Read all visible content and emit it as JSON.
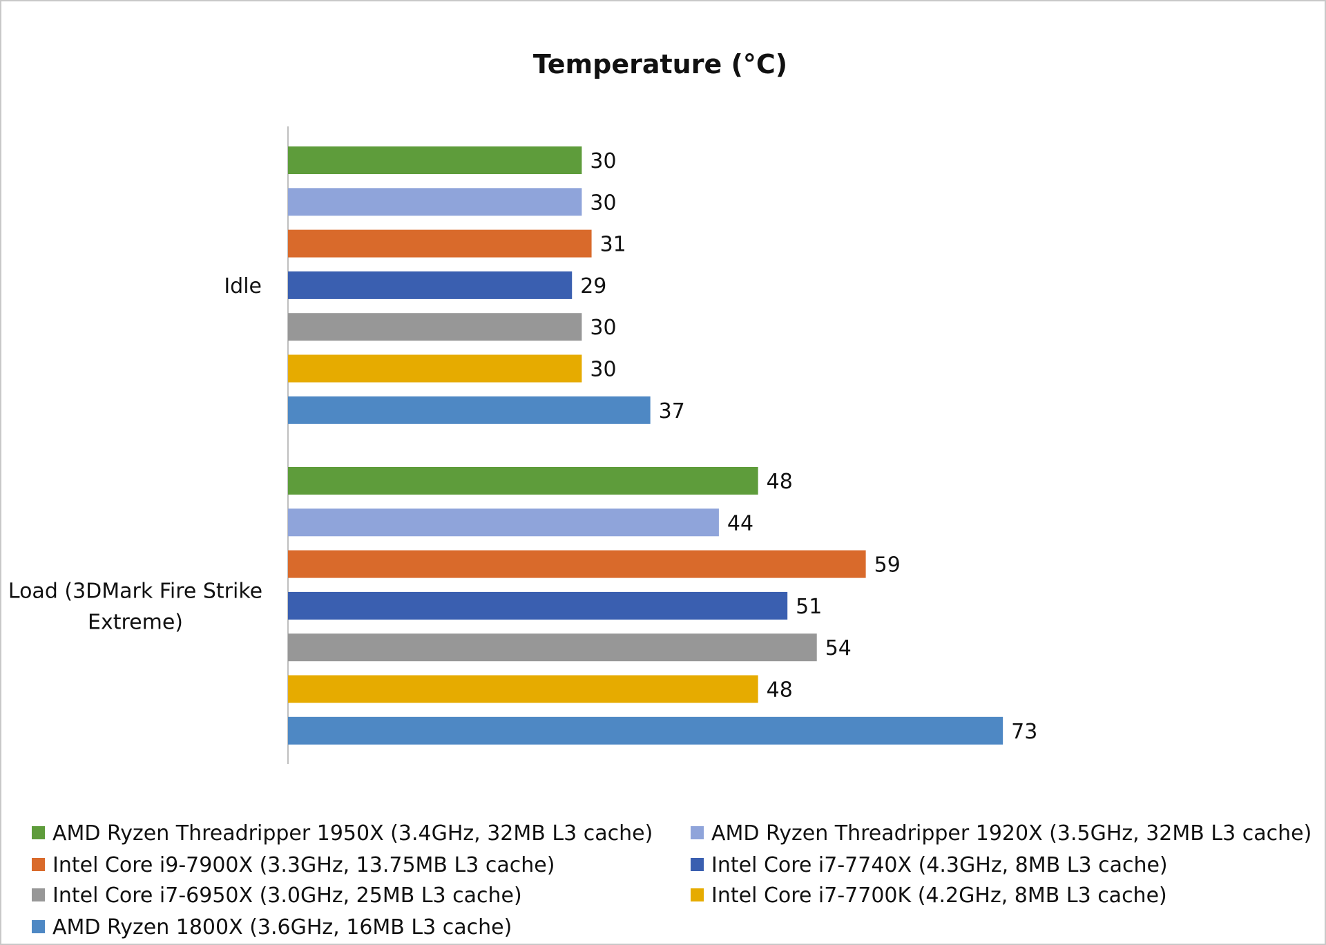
{
  "chart_data": {
    "type": "bar",
    "orientation": "horizontal",
    "title": "Temperature (°C)",
    "xlabel": "",
    "ylabel": "",
    "xlim": [
      0,
      80
    ],
    "grid": false,
    "legend_position": "bottom",
    "categories": [
      {
        "lines": [
          "Idle"
        ]
      },
      {
        "lines": [
          "Load (3DMark Fire Strike",
          "Extreme)"
        ]
      }
    ],
    "series": [
      {
        "name": "AMD Ryzen Threadripper 1950X (3.4GHz, 32MB L3 cache)",
        "color": "#5e9c3b",
        "values": [
          30,
          48
        ]
      },
      {
        "name": "AMD Ryzen Threadripper 1920X (3.5GHz, 32MB L3 cache)",
        "color": "#8fa4da",
        "values": [
          30,
          44
        ]
      },
      {
        "name": "Intel Core i9-7900X (3.3GHz, 13.75MB L3 cache)",
        "color": "#d96a2b",
        "values": [
          31,
          59
        ]
      },
      {
        "name": "Intel Core i7-7740X (4.3GHz, 8MB L3 cache)",
        "color": "#3a5fb0",
        "values": [
          29,
          51
        ]
      },
      {
        "name": "Intel Core i7-6950X (3.0GHz, 25MB L3 cache)",
        "color": "#979797",
        "values": [
          30,
          54
        ]
      },
      {
        "name": "Intel Core i7-7700K (4.2GHz, 8MB L3 cache)",
        "color": "#e6ab00",
        "values": [
          30,
          48
        ]
      },
      {
        "name": "AMD Ryzen 1800X (3.6GHz, 16MB L3 cache)",
        "color": "#4e88c4",
        "values": [
          37,
          73
        ]
      }
    ]
  }
}
